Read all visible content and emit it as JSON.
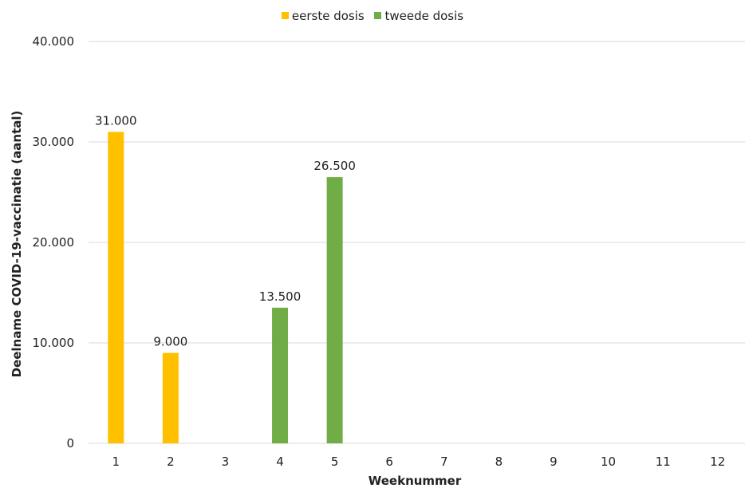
{
  "chart_data": {
    "type": "bar",
    "categories": [
      "1",
      "2",
      "3",
      "4",
      "5",
      "6",
      "7",
      "8",
      "9",
      "10",
      "11",
      "12"
    ],
    "series": [
      {
        "name": "eerste dosis",
        "color": "#FFC000",
        "values": [
          31000,
          9000,
          0,
          0,
          0,
          0,
          0,
          0,
          0,
          0,
          0,
          0
        ]
      },
      {
        "name": "tweede dosis",
        "color": "#70AD47",
        "values": [
          0,
          0,
          0,
          13500,
          26500,
          0,
          0,
          0,
          0,
          0,
          0,
          0
        ]
      }
    ],
    "data_labels": [
      "31.000",
      "9.000",
      "13.500",
      "26.500"
    ],
    "y_ticks": [
      "0",
      "10.000",
      "20.000",
      "30.000",
      "40.000"
    ],
    "title": "",
    "xlabel": "Weeknummer",
    "ylabel": "Deelname  COVID-19-vaccinatie  (aantal)",
    "ylim": [
      0,
      40000
    ],
    "grid": true,
    "legend_position": "top-center"
  }
}
